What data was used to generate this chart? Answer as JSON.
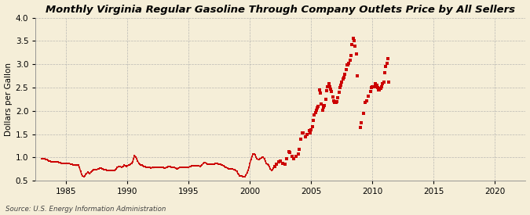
{
  "title": "Monthly Virginia Regular Gasoline Through Company Outlets Price by All Sellers",
  "ylabel": "Dollars per Gallon",
  "source": "Source: U.S. Energy Information Administration",
  "xlim": [
    1982.5,
    2022.5
  ],
  "ylim": [
    0.5,
    4.0
  ],
  "xticks": [
    1985,
    1990,
    1995,
    2000,
    2005,
    2010,
    2015,
    2020
  ],
  "yticks": [
    0.5,
    1.0,
    1.5,
    2.0,
    2.5,
    3.0,
    3.5,
    4.0
  ],
  "background_color": "#f5eed8",
  "line_color": "#cc0000",
  "title_fontsize": 9.5,
  "label_fontsize": 7.5,
  "tick_fontsize": 7.5,
  "connected_data": [
    [
      1983.0,
      0.98
    ],
    [
      1983.08,
      0.97
    ],
    [
      1983.17,
      0.97
    ],
    [
      1983.25,
      0.97
    ],
    [
      1983.33,
      0.96
    ],
    [
      1983.42,
      0.95
    ],
    [
      1983.5,
      0.94
    ],
    [
      1983.58,
      0.93
    ],
    [
      1983.67,
      0.92
    ],
    [
      1983.75,
      0.91
    ],
    [
      1983.83,
      0.91
    ],
    [
      1983.92,
      0.9
    ],
    [
      1984.0,
      0.9
    ],
    [
      1984.08,
      0.91
    ],
    [
      1984.17,
      0.91
    ],
    [
      1984.25,
      0.91
    ],
    [
      1984.33,
      0.9
    ],
    [
      1984.42,
      0.89
    ],
    [
      1984.5,
      0.89
    ],
    [
      1984.58,
      0.88
    ],
    [
      1984.67,
      0.87
    ],
    [
      1984.75,
      0.87
    ],
    [
      1984.83,
      0.87
    ],
    [
      1984.92,
      0.87
    ],
    [
      1985.0,
      0.87
    ],
    [
      1985.08,
      0.87
    ],
    [
      1985.17,
      0.87
    ],
    [
      1985.25,
      0.87
    ],
    [
      1985.33,
      0.86
    ],
    [
      1985.42,
      0.85
    ],
    [
      1985.5,
      0.85
    ],
    [
      1985.58,
      0.84
    ],
    [
      1985.67,
      0.84
    ],
    [
      1985.75,
      0.83
    ],
    [
      1985.83,
      0.83
    ],
    [
      1985.92,
      0.83
    ],
    [
      1986.0,
      0.83
    ],
    [
      1986.08,
      0.78
    ],
    [
      1986.17,
      0.7
    ],
    [
      1986.25,
      0.64
    ],
    [
      1986.33,
      0.6
    ],
    [
      1986.42,
      0.59
    ],
    [
      1986.5,
      0.6
    ],
    [
      1986.58,
      0.63
    ],
    [
      1986.67,
      0.66
    ],
    [
      1986.75,
      0.68
    ],
    [
      1986.83,
      0.67
    ],
    [
      1986.92,
      0.65
    ],
    [
      1987.0,
      0.68
    ],
    [
      1987.08,
      0.7
    ],
    [
      1987.17,
      0.72
    ],
    [
      1987.25,
      0.73
    ],
    [
      1987.33,
      0.74
    ],
    [
      1987.42,
      0.74
    ],
    [
      1987.5,
      0.74
    ],
    [
      1987.58,
      0.75
    ],
    [
      1987.67,
      0.76
    ],
    [
      1987.75,
      0.77
    ],
    [
      1987.83,
      0.77
    ],
    [
      1987.92,
      0.76
    ],
    [
      1988.0,
      0.75
    ],
    [
      1988.08,
      0.74
    ],
    [
      1988.17,
      0.74
    ],
    [
      1988.25,
      0.73
    ],
    [
      1988.33,
      0.72
    ],
    [
      1988.42,
      0.72
    ],
    [
      1988.5,
      0.72
    ],
    [
      1988.58,
      0.72
    ],
    [
      1988.67,
      0.72
    ],
    [
      1988.75,
      0.72
    ],
    [
      1988.83,
      0.72
    ],
    [
      1988.92,
      0.72
    ],
    [
      1989.0,
      0.73
    ],
    [
      1989.08,
      0.76
    ],
    [
      1989.17,
      0.78
    ],
    [
      1989.25,
      0.8
    ],
    [
      1989.33,
      0.8
    ],
    [
      1989.42,
      0.8
    ],
    [
      1989.5,
      0.79
    ],
    [
      1989.58,
      0.8
    ],
    [
      1989.67,
      0.81
    ],
    [
      1989.75,
      0.83
    ],
    [
      1989.83,
      0.82
    ],
    [
      1989.92,
      0.8
    ],
    [
      1990.0,
      0.82
    ],
    [
      1990.08,
      0.83
    ],
    [
      1990.17,
      0.84
    ],
    [
      1990.25,
      0.86
    ],
    [
      1990.33,
      0.88
    ],
    [
      1990.42,
      0.91
    ],
    [
      1990.5,
      0.98
    ],
    [
      1990.58,
      1.04
    ],
    [
      1990.67,
      1.01
    ],
    [
      1990.75,
      0.97
    ],
    [
      1990.83,
      0.92
    ],
    [
      1990.92,
      0.88
    ],
    [
      1991.0,
      0.85
    ],
    [
      1991.08,
      0.83
    ],
    [
      1991.17,
      0.83
    ],
    [
      1991.25,
      0.82
    ],
    [
      1991.33,
      0.81
    ],
    [
      1991.42,
      0.8
    ],
    [
      1991.5,
      0.79
    ],
    [
      1991.58,
      0.79
    ],
    [
      1991.67,
      0.79
    ],
    [
      1991.75,
      0.79
    ],
    [
      1991.83,
      0.78
    ],
    [
      1991.92,
      0.77
    ],
    [
      1992.0,
      0.78
    ],
    [
      1992.08,
      0.78
    ],
    [
      1992.17,
      0.78
    ],
    [
      1992.25,
      0.79
    ],
    [
      1992.33,
      0.79
    ],
    [
      1992.42,
      0.79
    ],
    [
      1992.5,
      0.79
    ],
    [
      1992.58,
      0.79
    ],
    [
      1992.67,
      0.79
    ],
    [
      1992.75,
      0.79
    ],
    [
      1992.83,
      0.79
    ],
    [
      1992.92,
      0.78
    ],
    [
      1993.0,
      0.77
    ],
    [
      1993.08,
      0.77
    ],
    [
      1993.17,
      0.78
    ],
    [
      1993.25,
      0.79
    ],
    [
      1993.33,
      0.8
    ],
    [
      1993.42,
      0.8
    ],
    [
      1993.5,
      0.8
    ],
    [
      1993.58,
      0.79
    ],
    [
      1993.67,
      0.79
    ],
    [
      1993.75,
      0.79
    ],
    [
      1993.83,
      0.78
    ],
    [
      1993.92,
      0.77
    ],
    [
      1994.0,
      0.76
    ],
    [
      1994.08,
      0.76
    ],
    [
      1994.17,
      0.77
    ],
    [
      1994.25,
      0.78
    ],
    [
      1994.33,
      0.79
    ],
    [
      1994.42,
      0.79
    ],
    [
      1994.5,
      0.79
    ],
    [
      1994.58,
      0.79
    ],
    [
      1994.67,
      0.79
    ],
    [
      1994.75,
      0.79
    ],
    [
      1994.83,
      0.79
    ],
    [
      1994.92,
      0.78
    ],
    [
      1995.0,
      0.79
    ],
    [
      1995.08,
      0.8
    ],
    [
      1995.17,
      0.81
    ],
    [
      1995.25,
      0.82
    ],
    [
      1995.33,
      0.82
    ],
    [
      1995.42,
      0.82
    ],
    [
      1995.5,
      0.82
    ],
    [
      1995.58,
      0.82
    ],
    [
      1995.67,
      0.82
    ],
    [
      1995.75,
      0.82
    ],
    [
      1995.83,
      0.82
    ],
    [
      1995.92,
      0.81
    ],
    [
      1996.0,
      0.82
    ],
    [
      1996.08,
      0.84
    ],
    [
      1996.17,
      0.87
    ],
    [
      1996.25,
      0.89
    ],
    [
      1996.33,
      0.89
    ],
    [
      1996.42,
      0.88
    ],
    [
      1996.5,
      0.86
    ],
    [
      1996.58,
      0.85
    ],
    [
      1996.67,
      0.85
    ],
    [
      1996.75,
      0.85
    ],
    [
      1996.83,
      0.85
    ],
    [
      1996.92,
      0.85
    ],
    [
      1997.0,
      0.86
    ],
    [
      1997.08,
      0.86
    ],
    [
      1997.17,
      0.87
    ],
    [
      1997.25,
      0.87
    ],
    [
      1997.33,
      0.87
    ],
    [
      1997.42,
      0.86
    ],
    [
      1997.5,
      0.86
    ],
    [
      1997.58,
      0.85
    ],
    [
      1997.67,
      0.84
    ],
    [
      1997.75,
      0.83
    ],
    [
      1997.83,
      0.82
    ],
    [
      1997.92,
      0.81
    ],
    [
      1998.0,
      0.79
    ],
    [
      1998.08,
      0.78
    ],
    [
      1998.17,
      0.77
    ],
    [
      1998.25,
      0.76
    ],
    [
      1998.33,
      0.76
    ],
    [
      1998.42,
      0.76
    ],
    [
      1998.5,
      0.76
    ],
    [
      1998.58,
      0.75
    ],
    [
      1998.67,
      0.74
    ],
    [
      1998.75,
      0.73
    ],
    [
      1998.83,
      0.72
    ],
    [
      1998.92,
      0.7
    ],
    [
      1999.0,
      0.66
    ],
    [
      1999.08,
      0.63
    ],
    [
      1999.17,
      0.61
    ],
    [
      1999.25,
      0.6
    ],
    [
      1999.33,
      0.6
    ],
    [
      1999.42,
      0.59
    ],
    [
      1999.5,
      0.58
    ],
    [
      1999.58,
      0.59
    ],
    [
      1999.67,
      0.62
    ],
    [
      1999.75,
      0.67
    ],
    [
      1999.83,
      0.72
    ],
    [
      1999.92,
      0.78
    ],
    [
      2000.0,
      0.88
    ],
    [
      2000.08,
      0.96
    ],
    [
      2000.17,
      1.02
    ],
    [
      2000.25,
      1.07
    ],
    [
      2000.33,
      1.08
    ],
    [
      2000.42,
      1.05
    ],
    [
      2000.5,
      1.0
    ],
    [
      2000.58,
      0.97
    ],
    [
      2000.67,
      0.96
    ],
    [
      2000.75,
      0.95
    ],
    [
      2000.83,
      0.97
    ],
    [
      2000.92,
      0.99
    ],
    [
      2001.0,
      1.01
    ],
    [
      2001.08,
      1.0
    ],
    [
      2001.17,
      0.97
    ],
    [
      2001.25,
      0.92
    ],
    [
      2001.33,
      0.87
    ],
    [
      2001.42,
      0.85
    ],
    [
      2001.5,
      0.83
    ],
    [
      2001.58,
      0.8
    ],
    [
      2001.67,
      0.75
    ],
    [
      2001.75,
      0.72
    ],
    [
      2001.83,
      0.73
    ],
    [
      2001.92,
      0.77
    ]
  ],
  "sparse_data": [
    [
      2002.0,
      0.8
    ],
    [
      2002.17,
      0.85
    ],
    [
      2002.33,
      0.91
    ],
    [
      2002.5,
      0.92
    ],
    [
      2002.67,
      0.88
    ],
    [
      2002.83,
      0.86
    ],
    [
      2003.0,
      0.97
    ],
    [
      2003.17,
      1.12
    ],
    [
      2003.25,
      1.1
    ],
    [
      2003.42,
      1.02
    ],
    [
      2003.58,
      0.98
    ],
    [
      2003.75,
      1.02
    ],
    [
      2003.92,
      1.08
    ],
    [
      2004.0,
      1.18
    ],
    [
      2004.17,
      1.4
    ],
    [
      2004.25,
      1.52
    ],
    [
      2004.33,
      1.52
    ],
    [
      2004.5,
      1.45
    ],
    [
      2004.67,
      1.5
    ],
    [
      2004.83,
      1.58
    ],
    [
      2004.92,
      1.52
    ],
    [
      2005.0,
      1.6
    ],
    [
      2005.08,
      1.66
    ],
    [
      2005.17,
      1.8
    ],
    [
      2005.25,
      1.92
    ],
    [
      2005.33,
      1.97
    ],
    [
      2005.42,
      2.02
    ],
    [
      2005.5,
      2.06
    ],
    [
      2005.58,
      2.1
    ],
    [
      2005.67,
      2.45
    ],
    [
      2005.75,
      2.38
    ],
    [
      2005.83,
      2.15
    ],
    [
      2005.92,
      2.02
    ],
    [
      2006.0,
      2.08
    ],
    [
      2006.08,
      2.12
    ],
    [
      2006.17,
      2.25
    ],
    [
      2006.25,
      2.43
    ],
    [
      2006.33,
      2.52
    ],
    [
      2006.42,
      2.58
    ],
    [
      2006.5,
      2.52
    ],
    [
      2006.58,
      2.47
    ],
    [
      2006.67,
      2.42
    ],
    [
      2006.75,
      2.3
    ],
    [
      2006.83,
      2.22
    ],
    [
      2006.92,
      2.18
    ],
    [
      2007.0,
      2.18
    ],
    [
      2007.08,
      2.2
    ],
    [
      2007.17,
      2.28
    ],
    [
      2007.25,
      2.4
    ],
    [
      2007.33,
      2.5
    ],
    [
      2007.42,
      2.55
    ],
    [
      2007.5,
      2.62
    ],
    [
      2007.58,
      2.68
    ],
    [
      2007.67,
      2.72
    ],
    [
      2007.75,
      2.78
    ],
    [
      2007.83,
      2.88
    ],
    [
      2007.92,
      2.98
    ],
    [
      2008.0,
      2.98
    ],
    [
      2008.08,
      3.02
    ],
    [
      2008.17,
      3.08
    ],
    [
      2008.25,
      3.18
    ],
    [
      2008.33,
      3.42
    ],
    [
      2008.42,
      3.56
    ],
    [
      2008.5,
      3.5
    ],
    [
      2008.58,
      3.38
    ],
    [
      2008.67,
      3.22
    ],
    [
      2008.75,
      2.75
    ],
    [
      2009.0,
      1.65
    ],
    [
      2009.08,
      1.75
    ],
    [
      2009.25,
      1.95
    ],
    [
      2009.42,
      2.18
    ],
    [
      2009.5,
      2.22
    ],
    [
      2009.67,
      2.32
    ],
    [
      2009.83,
      2.42
    ],
    [
      2009.92,
      2.5
    ],
    [
      2010.0,
      2.52
    ],
    [
      2010.08,
      2.52
    ],
    [
      2010.17,
      2.52
    ],
    [
      2010.25,
      2.58
    ],
    [
      2010.33,
      2.55
    ],
    [
      2010.42,
      2.5
    ],
    [
      2010.5,
      2.45
    ],
    [
      2010.58,
      2.45
    ],
    [
      2010.67,
      2.48
    ],
    [
      2010.75,
      2.52
    ],
    [
      2010.83,
      2.58
    ],
    [
      2010.92,
      2.62
    ],
    [
      2011.0,
      2.82
    ],
    [
      2011.08,
      2.95
    ],
    [
      2011.17,
      3.02
    ],
    [
      2011.25,
      3.12
    ],
    [
      2011.33,
      2.62
    ]
  ]
}
